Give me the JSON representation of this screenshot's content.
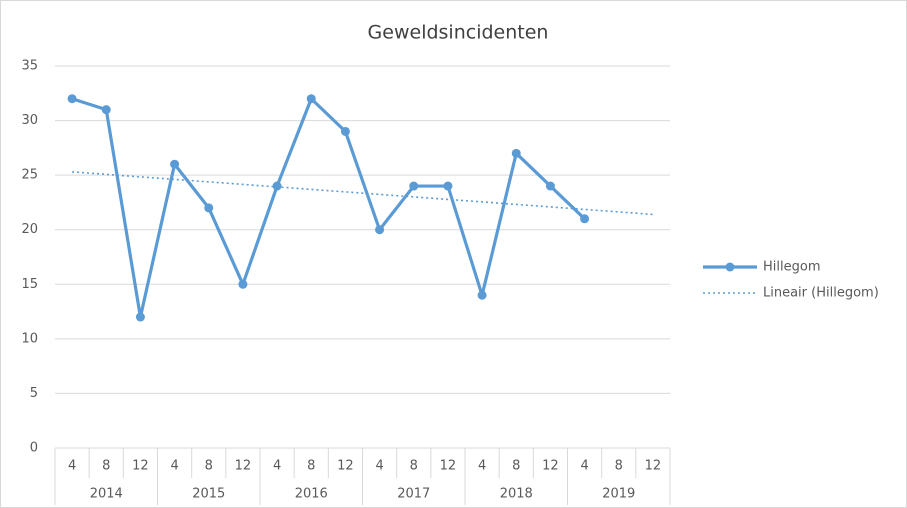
{
  "chart_data": {
    "type": "line",
    "title": "Geweldsincidenten",
    "categories": [
      "4",
      "8",
      "12",
      "4",
      "8",
      "12",
      "4",
      "8",
      "12",
      "4",
      "8",
      "12",
      "4",
      "8",
      "12",
      "4",
      "8",
      "12"
    ],
    "groups": [
      "2014",
      "2015",
      "2016",
      "2017",
      "2018",
      "2019"
    ],
    "series": [
      {
        "name": "Hillegom",
        "color": "#5b9bd5",
        "values": [
          32,
          31,
          12,
          26,
          22,
          15,
          24,
          32,
          29,
          20,
          24,
          24,
          14,
          27,
          24,
          21,
          null,
          null
        ]
      }
    ],
    "trendline": {
      "name": "Lineair (Hillegom)",
      "color": "#5b9bd5",
      "start": 25.3,
      "end": 21.4
    },
    "ylim": [
      0,
      35
    ],
    "yticks": [
      0,
      5,
      10,
      15,
      20,
      25,
      30,
      35
    ],
    "grid": true,
    "legend": "right"
  }
}
